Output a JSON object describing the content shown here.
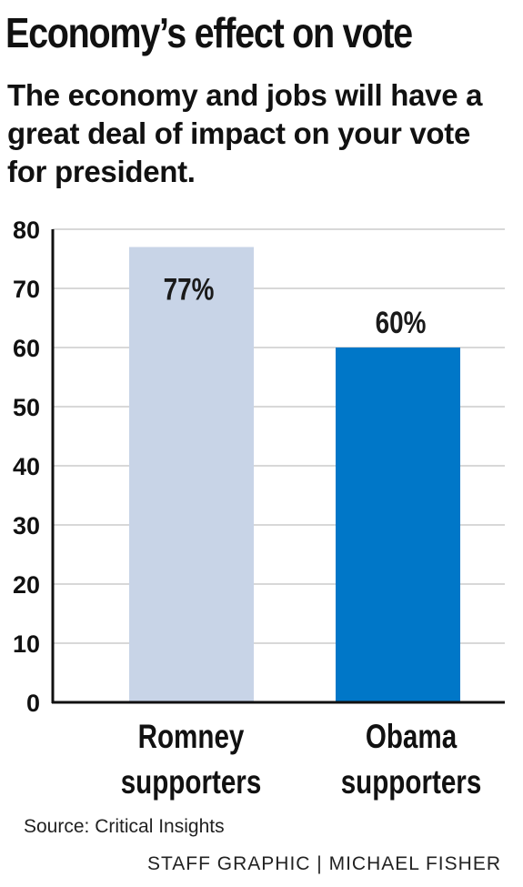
{
  "title": "Economy’s effect on vote",
  "subtitle": "The economy and jobs will have a great deal of impact on your vote for president.",
  "source": "Source: Critical Insights",
  "credit": "STAFF GRAPHIC | MICHAEL FISHER",
  "colors": {
    "romney": "#c8d4e7",
    "obama": "#0077c8",
    "grid": "#d8d8d8",
    "axis": "#111111"
  },
  "chart_data": {
    "type": "bar",
    "categories": [
      [
        "Romney",
        "supporters"
      ],
      [
        "Obama",
        "supporters"
      ]
    ],
    "values": [
      77,
      60
    ],
    "value_labels": [
      "77%",
      "60%"
    ],
    "bar_colors": [
      "#c8d4e7",
      "#0077c8"
    ],
    "ylim": [
      0,
      80
    ],
    "yticks": [
      0,
      10,
      20,
      30,
      40,
      50,
      60,
      70,
      80
    ],
    "grid": true,
    "legend": "none"
  }
}
